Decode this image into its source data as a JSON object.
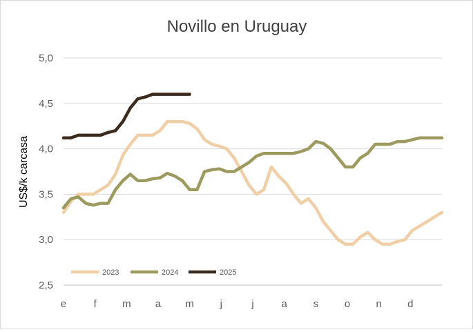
{
  "chart_data": {
    "type": "line",
    "title": "Novillo en Uruguay",
    "ylabel": "US$/k carcasa",
    "xlabel": "",
    "ylim": [
      2.5,
      5.0
    ],
    "yticks": [
      "2,5",
      "3,0",
      "3,5",
      "4,0",
      "4,5",
      "5,0"
    ],
    "ytick_values": [
      2.5,
      3.0,
      3.5,
      4.0,
      4.5,
      5.0
    ],
    "month_labels": [
      "e",
      "f",
      "m",
      "a",
      "m",
      "j",
      "j",
      "a",
      "s",
      "o",
      "n",
      "d"
    ],
    "weeks_per_year": 52,
    "grid": true,
    "legend": "bottom-left",
    "series": [
      {
        "name": "2023",
        "color": "#f0cfa6",
        "values": [
          3.3,
          3.42,
          3.5,
          3.5,
          3.5,
          3.55,
          3.6,
          3.72,
          3.93,
          4.05,
          4.15,
          4.15,
          4.15,
          4.2,
          4.3,
          4.3,
          4.3,
          4.28,
          4.22,
          4.1,
          4.05,
          4.03,
          4.0,
          3.9,
          3.75,
          3.6,
          3.5,
          3.55,
          3.8,
          3.7,
          3.62,
          3.5,
          3.4,
          3.45,
          3.35,
          3.2,
          3.1,
          3.0,
          2.95,
          2.95,
          3.03,
          3.08,
          3.0,
          2.95,
          2.95,
          2.98,
          3.0,
          3.1,
          3.15,
          3.2,
          3.25,
          3.3
        ]
      },
      {
        "name": "2024",
        "color": "#9c9a5e",
        "values": [
          3.35,
          3.45,
          3.47,
          3.4,
          3.38,
          3.4,
          3.4,
          3.55,
          3.65,
          3.72,
          3.65,
          3.65,
          3.67,
          3.68,
          3.73,
          3.7,
          3.65,
          3.55,
          3.55,
          3.75,
          3.77,
          3.78,
          3.75,
          3.75,
          3.8,
          3.85,
          3.92,
          3.95,
          3.95,
          3.95,
          3.95,
          3.95,
          3.97,
          4.0,
          4.08,
          4.06,
          4.0,
          3.9,
          3.8,
          3.8,
          3.9,
          3.95,
          4.05,
          4.05,
          4.05,
          4.08,
          4.08,
          4.1,
          4.12,
          4.12,
          4.12,
          4.12
        ]
      },
      {
        "name": "2025",
        "color": "#3b2a1e",
        "values": [
          4.12,
          4.12,
          4.15,
          4.15,
          4.15,
          4.15,
          4.18,
          4.2,
          4.3,
          4.45,
          4.55,
          4.57,
          4.6,
          4.6,
          4.6,
          4.6,
          4.6,
          4.6
        ]
      }
    ]
  }
}
